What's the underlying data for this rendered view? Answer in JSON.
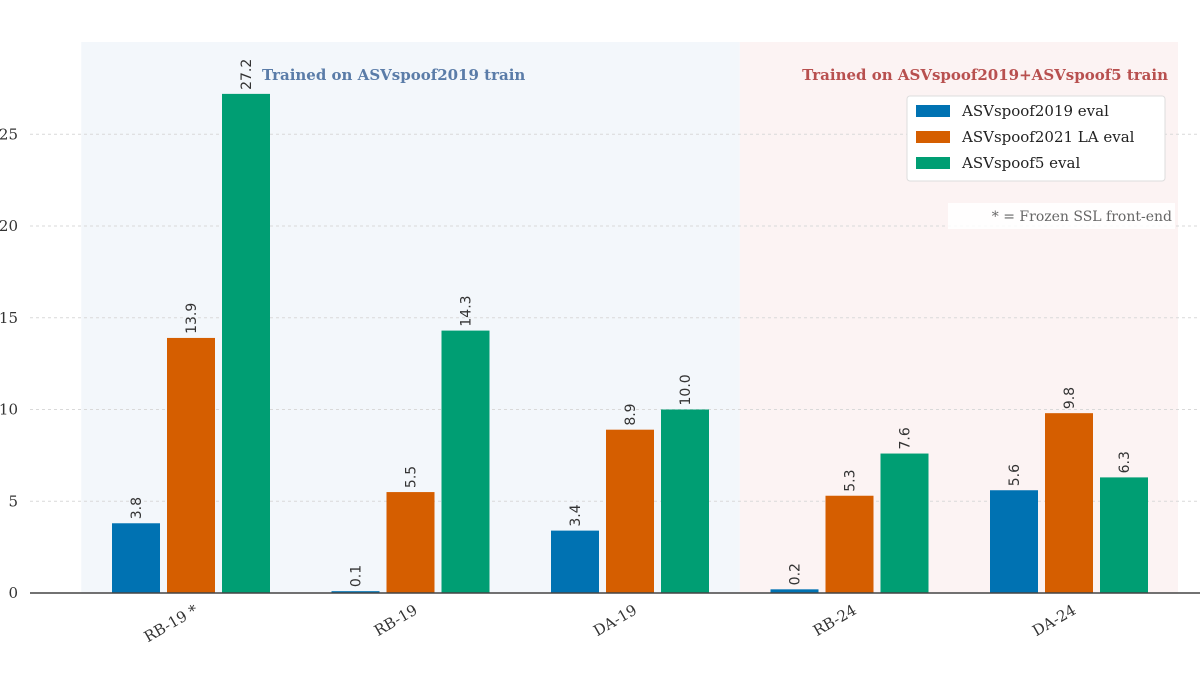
{
  "chart_data": {
    "type": "bar",
    "categories": [
      "RB-19 *",
      "RB-19",
      "DA-19",
      "RB-24",
      "DA-24"
    ],
    "series": [
      {
        "name": "ASVspoof2019 eval",
        "color": "#0072b2",
        "values": [
          3.8,
          0.1,
          3.4,
          0.2,
          5.6
        ]
      },
      {
        "name": "ASVspoof2021 LA eval",
        "color": "#d55e00",
        "values": [
          13.9,
          5.5,
          8.9,
          5.3,
          9.8
        ]
      },
      {
        "name": "ASVspoof5 eval",
        "color": "#009e73",
        "values": [
          27.2,
          14.3,
          10.0,
          7.6,
          6.3
        ]
      }
    ],
    "value_labels": [
      [
        "3.8",
        "0.1",
        "3.4",
        "0.2",
        "5.6"
      ],
      [
        "13.9",
        "5.5",
        "8.9",
        "5.3",
        "9.8"
      ],
      [
        "27.2",
        "14.3",
        "10.0",
        "7.6",
        "6.3"
      ]
    ],
    "y_ticks": [
      0,
      5,
      10,
      15,
      20,
      25
    ],
    "y_tick_labels": [
      "0",
      "5",
      "10",
      "15",
      "20",
      "25"
    ],
    "ylim": [
      0,
      30
    ],
    "grid": true,
    "regions": [
      {
        "label": "Trained on ASVspoof2019 train",
        "categories": [
          "RB-19 *",
          "RB-19",
          "DA-19"
        ],
        "background": "#f3f7fb",
        "text_color": "#5a7ca8"
      },
      {
        "label": "Trained on ASVspoof2019+ASVspoof5 train",
        "categories": [
          "RB-24",
          "DA-24"
        ],
        "background": "#fcf3f3",
        "text_color": "#b8504f"
      }
    ],
    "legend_position": "top-right",
    "annotation": "* = Frozen SSL front-end"
  }
}
